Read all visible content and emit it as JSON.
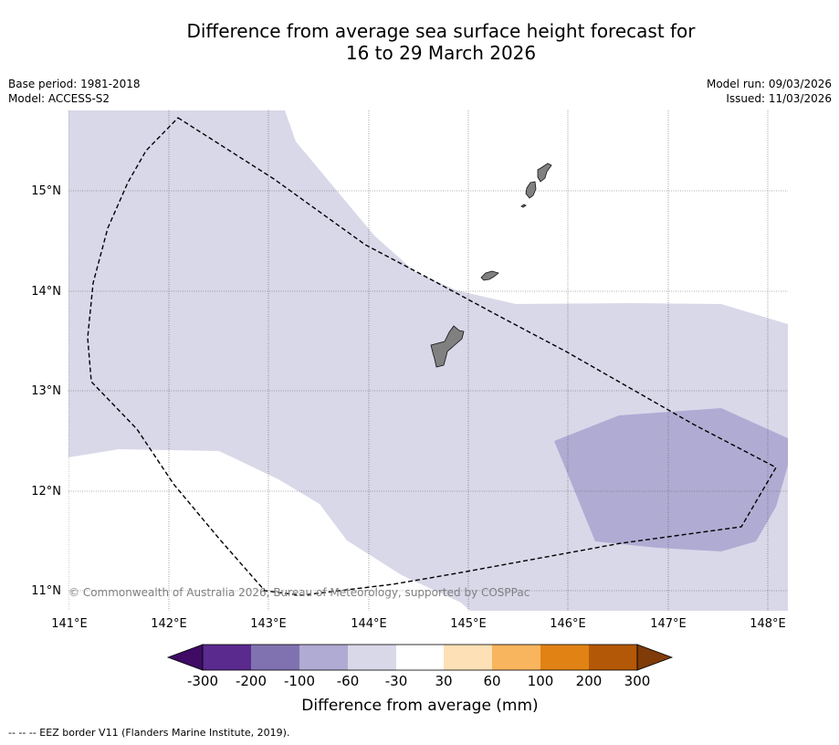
{
  "title": {
    "line1": "Difference from average sea surface height forecast for",
    "line2": "16 to 29 March 2026"
  },
  "meta": {
    "base_period": "Base period: 1981-2018",
    "model": "Model: ACCESS-S2",
    "model_run": "Model run: 09/03/2026",
    "issued": "Issued: 11/03/2026"
  },
  "map": {
    "copyright": "© Commonwealth of Australia 2026, Bureau of Meteorology, supported by COSPPac",
    "lat_labels": [
      "15°N",
      "14°N",
      "13°N",
      "12°N",
      "11°N"
    ],
    "lon_labels": [
      "141°E",
      "142°E",
      "143°E",
      "144°E",
      "145°E",
      "146°E",
      "147°E",
      "148°E"
    ],
    "fill_colors": {
      "band_minus60_minus30": "#d8d8e9",
      "band_minus100_minus60": "#b0abd3",
      "land": "#808080",
      "eez_border": "#000000"
    }
  },
  "colorbar": {
    "ticks": [
      "-300",
      "-200",
      "-100",
      "-60",
      "-30",
      "30",
      "60",
      "100",
      "200",
      "300"
    ],
    "label": "Difference from average (mm)",
    "colors": [
      "#3f0b65",
      "#5a2a8e",
      "#8072b0",
      "#b0abd3",
      "#d8d8e9",
      "#ffffff",
      "#fde0b5",
      "#f9b55d",
      "#e08214",
      "#b35806",
      "#7f3b08"
    ]
  },
  "footer": {
    "legend": "--  --  -- EEZ border V11 (Flanders Marine Institute, 2019)."
  }
}
